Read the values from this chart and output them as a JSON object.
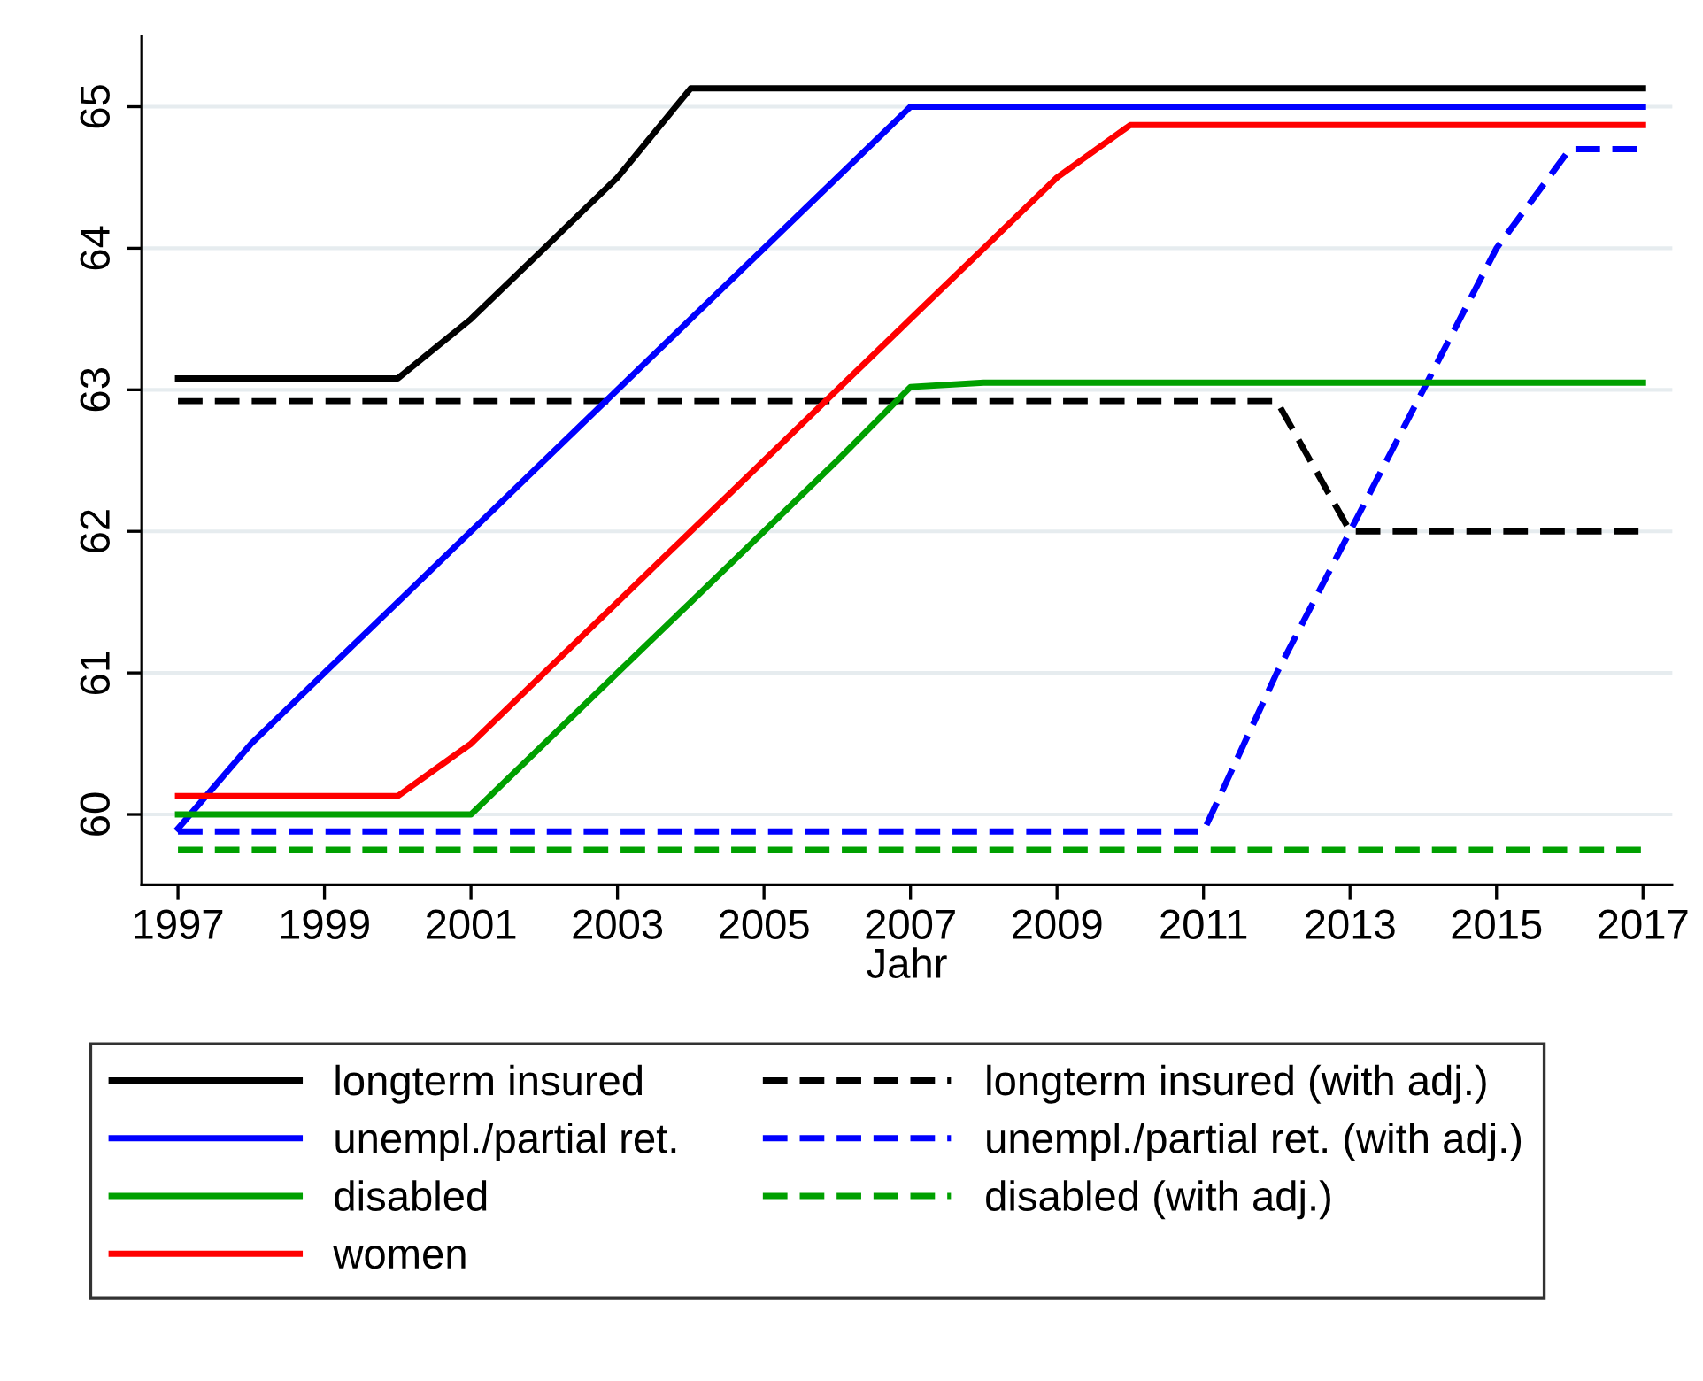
{
  "chart_data": {
    "type": "line",
    "xlabel": "Jahr",
    "x": [
      1997,
      1998,
      1999,
      2000,
      2001,
      2002,
      2003,
      2004,
      2005,
      2006,
      2007,
      2008,
      2009,
      2010,
      2011,
      2012,
      2013,
      2014,
      2015,
      2016,
      2017
    ],
    "series": [
      {
        "name": "longterm insured",
        "color": "#000000",
        "line_style": "solid",
        "values": [
          63.08,
          63.08,
          63.08,
          63.08,
          63.5,
          64.0,
          64.5,
          65.13,
          65.13,
          65.13,
          65.13,
          65.13,
          65.13,
          65.13,
          65.13,
          65.13,
          65.13,
          65.13,
          65.13,
          65.13,
          65.13
        ]
      },
      {
        "name": "longterm insured (with adj.)",
        "color": "#000000",
        "line_style": "dashed",
        "values": [
          62.92,
          62.92,
          62.92,
          62.92,
          62.92,
          62.92,
          62.92,
          62.92,
          62.92,
          62.92,
          62.92,
          62.92,
          62.92,
          62.92,
          62.92,
          62.92,
          62.0,
          62.0,
          62.0,
          62.0,
          62.0
        ]
      },
      {
        "name": "unempl./partial ret.",
        "color": "#0000ff",
        "line_style": "solid",
        "values": [
          59.9,
          60.5,
          61.0,
          61.5,
          62.0,
          62.5,
          63.0,
          63.5,
          64.0,
          64.5,
          65.0,
          65.0,
          65.0,
          65.0,
          65.0,
          65.0,
          65.0,
          65.0,
          65.0,
          65.0,
          65.0
        ]
      },
      {
        "name": "unempl./partial ret. (with adj.)",
        "color": "#0000ff",
        "line_style": "dashed",
        "values": [
          59.88,
          59.88,
          59.88,
          59.88,
          59.88,
          59.88,
          59.88,
          59.88,
          59.88,
          59.88,
          59.88,
          59.88,
          59.88,
          59.88,
          59.88,
          61.0,
          62.0,
          63.0,
          64.0,
          64.7,
          64.7
        ]
      },
      {
        "name": "disabled",
        "color": "#00a000",
        "line_style": "solid",
        "values": [
          60.0,
          60.0,
          60.0,
          60.0,
          60.0,
          60.5,
          61.0,
          61.5,
          62.0,
          62.5,
          63.02,
          63.05,
          63.05,
          63.05,
          63.05,
          63.05,
          63.05,
          63.05,
          63.05,
          63.05,
          63.05
        ]
      },
      {
        "name": "disabled (with adj.)",
        "color": "#00a000",
        "line_style": "dashed",
        "values": [
          59.75,
          59.75,
          59.75,
          59.75,
          59.75,
          59.75,
          59.75,
          59.75,
          59.75,
          59.75,
          59.75,
          59.75,
          59.75,
          59.75,
          59.75,
          59.75,
          59.75,
          59.75,
          59.75,
          59.75,
          59.75
        ]
      },
      {
        "name": "women",
        "color": "#ff0000",
        "line_style": "solid",
        "values": [
          60.13,
          60.13,
          60.13,
          60.13,
          60.5,
          61.0,
          61.5,
          62.0,
          62.5,
          63.0,
          63.5,
          64.0,
          64.5,
          64.87,
          64.87,
          64.87,
          64.87,
          64.87,
          64.87,
          64.87,
          64.87
        ]
      }
    ],
    "xlim": [
      1996.5,
      2017.4
    ],
    "xticks": [
      1997,
      1999,
      2001,
      2003,
      2005,
      2007,
      2009,
      2011,
      2013,
      2015,
      2017
    ],
    "ylim": [
      59.5,
      65.5
    ],
    "yticks": [
      60,
      61,
      62,
      63,
      64,
      65
    ],
    "grid": "y",
    "legend": "bottom",
    "marker": "none"
  }
}
